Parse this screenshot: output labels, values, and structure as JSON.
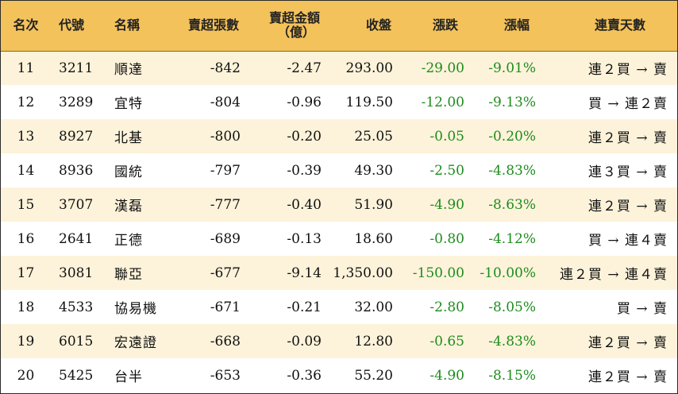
{
  "headers": {
    "rank": "名次",
    "code": "代號",
    "name": "名稱",
    "net_sell_lots": "賣超張數",
    "net_sell_amount_line1": "賣超金額",
    "net_sell_amount_line2": "（億）",
    "close": "收盤",
    "change": "漲跌",
    "change_pct": "漲幅",
    "streak": "連賣天數"
  },
  "colors": {
    "header_bg": "#f4c25a",
    "stripe_bg": "#fdf3da",
    "negative_change": "#1e8c1e"
  },
  "rows": [
    {
      "rank": "11",
      "code": "3211",
      "name": "順達",
      "net_sell_lots": "-842",
      "net_sell_amount": "-2.47",
      "close": "293.00",
      "change": "-29.00",
      "change_pct": "-9.01%",
      "streak": "連２買 → 賣"
    },
    {
      "rank": "12",
      "code": "3289",
      "name": "宜特",
      "net_sell_lots": "-804",
      "net_sell_amount": "-0.96",
      "close": "119.50",
      "change": "-12.00",
      "change_pct": "-9.13%",
      "streak": "買 → 連２賣"
    },
    {
      "rank": "13",
      "code": "8927",
      "name": "北基",
      "net_sell_lots": "-800",
      "net_sell_amount": "-0.20",
      "close": "25.05",
      "change": "-0.05",
      "change_pct": "-0.20%",
      "streak": "連２買 → 賣"
    },
    {
      "rank": "14",
      "code": "8936",
      "name": "國統",
      "net_sell_lots": "-797",
      "net_sell_amount": "-0.39",
      "close": "49.30",
      "change": "-2.50",
      "change_pct": "-4.83%",
      "streak": "連３買 → 賣"
    },
    {
      "rank": "15",
      "code": "3707",
      "name": "漢磊",
      "net_sell_lots": "-777",
      "net_sell_amount": "-0.40",
      "close": "51.90",
      "change": "-4.90",
      "change_pct": "-8.63%",
      "streak": "連２買 → 賣"
    },
    {
      "rank": "16",
      "code": "2641",
      "name": "正德",
      "net_sell_lots": "-689",
      "net_sell_amount": "-0.13",
      "close": "18.60",
      "change": "-0.80",
      "change_pct": "-4.12%",
      "streak": "買 → 連４賣"
    },
    {
      "rank": "17",
      "code": "3081",
      "name": "聯亞",
      "net_sell_lots": "-677",
      "net_sell_amount": "-9.14",
      "close": "1,350.00",
      "change": "-150.00",
      "change_pct": "-10.00%",
      "streak": "連２買 → 連４賣"
    },
    {
      "rank": "18",
      "code": "4533",
      "name": "協易機",
      "net_sell_lots": "-671",
      "net_sell_amount": "-0.21",
      "close": "32.00",
      "change": "-2.80",
      "change_pct": "-8.05%",
      "streak": "買 → 賣"
    },
    {
      "rank": "19",
      "code": "6015",
      "name": "宏遠證",
      "net_sell_lots": "-668",
      "net_sell_amount": "-0.09",
      "close": "12.80",
      "change": "-0.65",
      "change_pct": "-4.83%",
      "streak": "連２買 → 賣"
    },
    {
      "rank": "20",
      "code": "5425",
      "name": "台半",
      "net_sell_lots": "-653",
      "net_sell_amount": "-0.36",
      "close": "55.20",
      "change": "-4.90",
      "change_pct": "-8.15%",
      "streak": "連２買 → 賣"
    }
  ]
}
